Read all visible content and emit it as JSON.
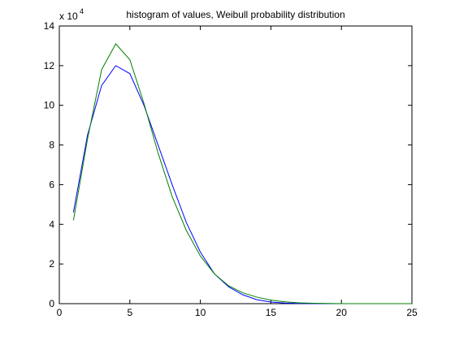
{
  "chart_data": {
    "type": "line",
    "title": "histogram of values, Weibull probability distribution",
    "xlabel": "",
    "ylabel": "",
    "xlim": [
      0,
      25
    ],
    "ylim": [
      0,
      14
    ],
    "x_ticks": [
      0,
      5,
      10,
      15,
      20,
      25
    ],
    "y_ticks": [
      0,
      2,
      4,
      6,
      8,
      10,
      12,
      14
    ],
    "y_multiplier_label": {
      "base": "x 10",
      "exponent": "4"
    },
    "grid": false,
    "legend": "none",
    "x": [
      1,
      2,
      3,
      4,
      5,
      6,
      7,
      8,
      9,
      10,
      11,
      12,
      13,
      14,
      15,
      16,
      17,
      18,
      19,
      20,
      21,
      22,
      23,
      24,
      25
    ],
    "series": [
      {
        "color": "#0000ff",
        "values": [
          4.6,
          8.5,
          11.0,
          12.0,
          11.6,
          10.0,
          8.0,
          6.0,
          4.1,
          2.6,
          1.5,
          0.85,
          0.45,
          0.2,
          0.08,
          0.03,
          0.01,
          0.0,
          0.0,
          0.0,
          0.0,
          0.0,
          0.0,
          0.0,
          0.0
        ]
      },
      {
        "color": "#008000",
        "values": [
          4.2,
          8.3,
          11.8,
          13.1,
          12.3,
          10.1,
          7.6,
          5.4,
          3.7,
          2.4,
          1.5,
          0.9,
          0.55,
          0.33,
          0.18,
          0.09,
          0.04,
          0.02,
          0.01,
          0.0,
          0.0,
          0.0,
          0.0,
          0.0,
          0.0
        ]
      }
    ]
  }
}
